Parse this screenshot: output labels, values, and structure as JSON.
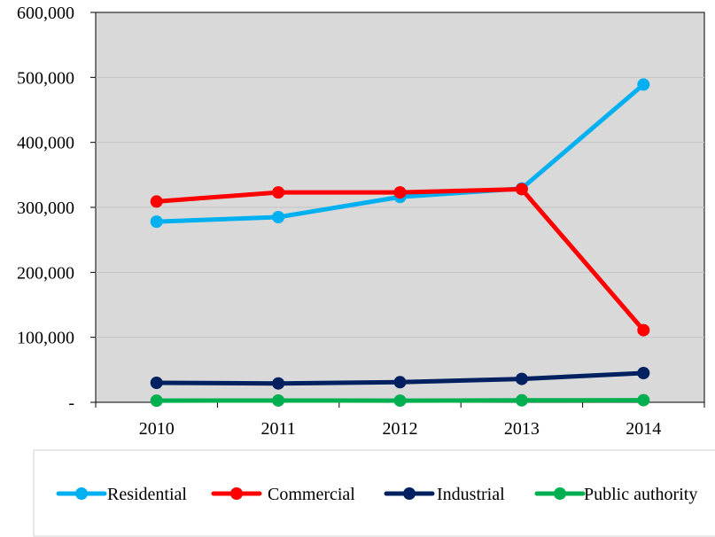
{
  "chart_data": {
    "type": "line",
    "title": "",
    "xlabel": "",
    "ylabel": "",
    "categories": [
      "2010",
      "2011",
      "2012",
      "2013",
      "2014"
    ],
    "ylim": [
      0,
      600000
    ],
    "yticks": [
      0,
      100000,
      200000,
      300000,
      400000,
      500000,
      600000
    ],
    "ytick_labels": [
      "-",
      "100,000",
      "200,000",
      "300,000",
      "400,000",
      "500,000",
      "600,000"
    ],
    "grid": true,
    "plot_background": "#d9d9d9",
    "legend_position": "bottom",
    "series": [
      {
        "name": "Residential",
        "color": "#00b0f0",
        "values": [
          278000,
          285000,
          316000,
          329000,
          489000
        ]
      },
      {
        "name": "Commercial",
        "color": "#ff0000",
        "values": [
          309000,
          323000,
          323000,
          328000,
          111000
        ]
      },
      {
        "name": "Industrial",
        "color": "#002060",
        "values": [
          30000,
          29000,
          31000,
          36000,
          45000
        ]
      },
      {
        "name": "Public authority",
        "color": "#00b050",
        "values": [
          2500,
          2800,
          2600,
          3000,
          3300
        ]
      }
    ]
  }
}
